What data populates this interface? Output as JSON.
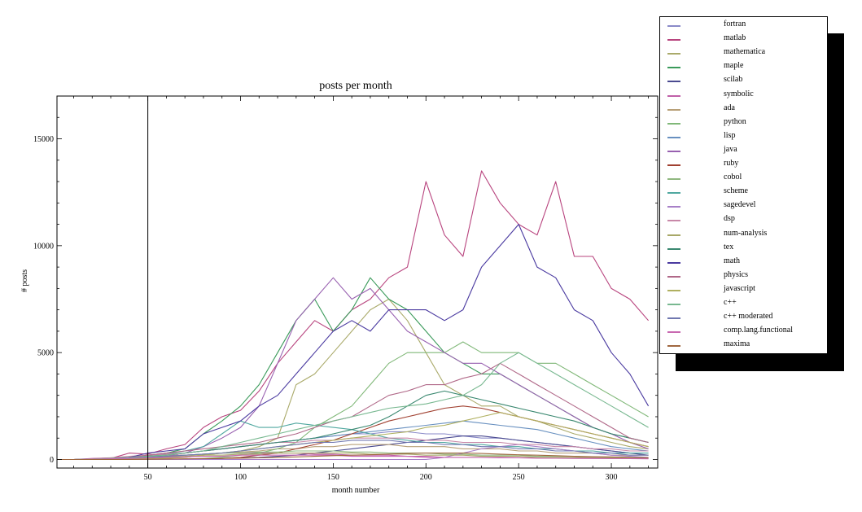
{
  "chart_data": {
    "type": "line",
    "title": "posts per month",
    "xlabel": "month number",
    "ylabel": "# posts",
    "xlim": [
      1,
      325
    ],
    "ylim": [
      -400,
      17000
    ],
    "xticks": [
      50,
      100,
      150,
      200,
      250,
      300
    ],
    "yticks": [
      0,
      5000,
      10000,
      15000
    ],
    "vertical_marker_x": 50,
    "grid": false,
    "legend_placement": "right-outside-top",
    "x": [
      1,
      10,
      20,
      30,
      40,
      50,
      60,
      70,
      80,
      90,
      100,
      110,
      120,
      130,
      140,
      150,
      160,
      170,
      180,
      190,
      200,
      210,
      220,
      230,
      240,
      250,
      260,
      270,
      280,
      290,
      300,
      310,
      320
    ],
    "series": [
      {
        "name": "fortran",
        "color": "#8a8ac8",
        "values": [
          0,
          0,
          10,
          30,
          80,
          150,
          200,
          300,
          400,
          500,
          600,
          700,
          800,
          900,
          1000,
          1100,
          1200,
          1200,
          1300,
          1300,
          1200,
          1200,
          1100,
          1000,
          1000,
          900,
          800,
          700,
          600,
          500,
          400,
          300,
          300
        ]
      },
      {
        "name": "matlab",
        "color": "#b8447e",
        "values": [
          0,
          0,
          20,
          50,
          300,
          250,
          500,
          700,
          1500,
          2000,
          2300,
          3200,
          4500,
          5500,
          6500,
          6000,
          7000,
          7500,
          8500,
          9000,
          13000,
          10500,
          9500,
          13500,
          12000,
          11000,
          10500,
          13000,
          9500,
          9500,
          8000,
          7500,
          6500
        ]
      },
      {
        "name": "mathematica",
        "color": "#aaaa6a",
        "values": [
          0,
          0,
          0,
          0,
          20,
          50,
          80,
          100,
          200,
          300,
          400,
          600,
          1000,
          3500,
          4000,
          5000,
          6000,
          7000,
          7500,
          6500,
          5000,
          3500,
          3000,
          2500,
          2500,
          2000,
          1800,
          1500,
          1200,
          1000,
          800,
          600,
          500
        ]
      },
      {
        "name": "maple",
        "color": "#3a9a5a",
        "values": [
          0,
          0,
          0,
          20,
          100,
          200,
          300,
          500,
          1200,
          1800,
          2500,
          3500,
          5000,
          6500,
          7500,
          6000,
          7000,
          8500,
          7500,
          7000,
          6000,
          5000,
          4500,
          4000,
          4000,
          3500,
          3000,
          2500,
          2000,
          1500,
          1200,
          1000,
          800
        ]
      },
      {
        "name": "scilab",
        "color": "#4a4a90",
        "values": [
          0,
          0,
          0,
          0,
          0,
          0,
          0,
          10,
          20,
          50,
          80,
          100,
          150,
          200,
          300,
          400,
          500,
          600,
          700,
          800,
          900,
          1000,
          1100,
          1100,
          1000,
          900,
          800,
          700,
          600,
          500,
          400,
          300,
          200
        ]
      },
      {
        "name": "symbolic",
        "color": "#c060a8",
        "values": [
          0,
          0,
          50,
          80,
          100,
          150,
          200,
          200,
          250,
          300,
          300,
          300,
          300,
          300,
          250,
          250,
          200,
          200,
          200,
          150,
          150,
          100,
          100,
          100,
          100,
          80,
          80,
          60,
          60,
          50,
          50,
          40,
          40
        ]
      },
      {
        "name": "ada",
        "color": "#b8a078",
        "values": [
          0,
          0,
          30,
          50,
          80,
          120,
          150,
          200,
          250,
          300,
          350,
          400,
          500,
          500,
          600,
          600,
          700,
          700,
          700,
          600,
          600,
          600,
          500,
          500,
          500,
          400,
          400,
          300,
          300,
          300,
          200,
          200,
          200
        ]
      },
      {
        "name": "python",
        "color": "#80b878",
        "values": [
          0,
          0,
          0,
          0,
          0,
          0,
          10,
          20,
          50,
          100,
          200,
          300,
          500,
          800,
          1500,
          2000,
          2500,
          3500,
          4500,
          5000,
          5000,
          5000,
          5500,
          5000,
          5000,
          5000,
          4500,
          4500,
          4000,
          3500,
          3000,
          2500,
          2000
        ]
      },
      {
        "name": "lisp",
        "color": "#6890c0",
        "values": [
          0,
          0,
          20,
          50,
          100,
          150,
          200,
          300,
          400,
          500,
          600,
          700,
          800,
          900,
          1000,
          1100,
          1200,
          1300,
          1400,
          1500,
          1600,
          1700,
          1800,
          1700,
          1600,
          1500,
          1400,
          1200,
          1000,
          800,
          600,
          500,
          400
        ]
      },
      {
        "name": "java",
        "color": "#9860b0",
        "values": [
          0,
          0,
          0,
          0,
          50,
          100,
          200,
          300,
          600,
          1000,
          1500,
          2500,
          4500,
          6500,
          7500,
          8500,
          7500,
          8000,
          7000,
          6000,
          5500,
          5000,
          4500,
          4500,
          4000,
          3500,
          3000,
          2500,
          2000,
          1500,
          1200,
          800,
          500
        ]
      },
      {
        "name": "ruby",
        "color": "#a04030",
        "values": [
          0,
          0,
          0,
          0,
          0,
          0,
          0,
          10,
          20,
          50,
          100,
          200,
          300,
          500,
          700,
          900,
          1200,
          1500,
          1800,
          2000,
          2200,
          2400,
          2500,
          2400,
          2200,
          2000,
          1800,
          1600,
          1400,
          1200,
          1000,
          800,
          600
        ]
      },
      {
        "name": "cobol",
        "color": "#90b880",
        "values": [
          0,
          0,
          20,
          40,
          80,
          100,
          150,
          200,
          250,
          300,
          300,
          350,
          350,
          400,
          400,
          400,
          350,
          350,
          300,
          300,
          300,
          250,
          250,
          200,
          200,
          200,
          150,
          150,
          150,
          100,
          100,
          100,
          80
        ]
      },
      {
        "name": "scheme",
        "color": "#50a8a0",
        "values": [
          0,
          0,
          10,
          30,
          80,
          150,
          250,
          400,
          600,
          1200,
          1800,
          1500,
          1500,
          1700,
          1600,
          1500,
          1400,
          1200,
          1000,
          900,
          800,
          800,
          700,
          700,
          600,
          600,
          500,
          500,
          400,
          400,
          300,
          300,
          300
        ]
      },
      {
        "name": "sagedevel",
        "color": "#a880c8",
        "values": [
          0,
          0,
          0,
          0,
          0,
          0,
          0,
          0,
          0,
          0,
          0,
          0,
          0,
          0,
          0,
          0,
          0,
          0,
          0,
          0,
          0,
          100,
          300,
          500,
          600,
          700,
          600,
          500,
          400,
          300,
          200,
          150,
          100
        ]
      },
      {
        "name": "dsp",
        "color": "#c888a8",
        "values": [
          0,
          0,
          30,
          80,
          150,
          200,
          250,
          300,
          400,
          500,
          600,
          700,
          800,
          800,
          900,
          900,
          1000,
          1000,
          1000,
          1000,
          900,
          900,
          800,
          800,
          800,
          700,
          700,
          600,
          600,
          500,
          500,
          400,
          400
        ]
      },
      {
        "name": "num-analysis",
        "color": "#a8a868",
        "values": [
          0,
          0,
          20,
          50,
          80,
          100,
          120,
          150,
          200,
          200,
          250,
          250,
          300,
          300,
          300,
          300,
          300,
          250,
          250,
          250,
          200,
          200,
          200,
          150,
          150,
          150,
          100,
          100,
          100,
          100,
          80,
          80,
          60
        ]
      },
      {
        "name": "tex",
        "color": "#3a8870",
        "values": [
          0,
          0,
          20,
          50,
          100,
          150,
          200,
          300,
          400,
          500,
          600,
          700,
          800,
          900,
          1000,
          1200,
          1400,
          1600,
          2000,
          2500,
          3000,
          3200,
          3000,
          2800,
          2600,
          2400,
          2200,
          2000,
          1800,
          1500,
          1200,
          1000,
          800
        ]
      },
      {
        "name": "math",
        "color": "#4a3aa0",
        "values": [
          0,
          0,
          10,
          30,
          100,
          300,
          400,
          500,
          1200,
          1500,
          1800,
          2500,
          3000,
          4000,
          5000,
          6000,
          6500,
          6000,
          7000,
          7000,
          7000,
          6500,
          7000,
          9000,
          10000,
          11000,
          9000,
          8500,
          7000,
          6500,
          5000,
          4000,
          2500
        ]
      },
      {
        "name": "physics",
        "color": "#b06888",
        "values": [
          0,
          0,
          20,
          50,
          100,
          200,
          300,
          400,
          500,
          600,
          700,
          800,
          1000,
          1200,
          1500,
          1800,
          2000,
          2500,
          3000,
          3200,
          3500,
          3500,
          3800,
          4000,
          4500,
          4000,
          3500,
          3000,
          2500,
          2000,
          1500,
          1000,
          800
        ]
      },
      {
        "name": "javascript",
        "color": "#b0b060",
        "values": [
          0,
          0,
          0,
          0,
          10,
          20,
          50,
          100,
          200,
          300,
          400,
          500,
          600,
          700,
          800,
          900,
          1000,
          1100,
          1200,
          1300,
          1500,
          1600,
          1800,
          2000,
          2200,
          2000,
          1800,
          1600,
          1400,
          1200,
          1000,
          800,
          600
        ]
      },
      {
        "name": "c++",
        "color": "#78b890",
        "values": [
          0,
          0,
          20,
          50,
          100,
          150,
          200,
          300,
          400,
          600,
          800,
          1000,
          1200,
          1400,
          1600,
          1800,
          2000,
          2200,
          2400,
          2500,
          2600,
          2800,
          3000,
          3500,
          4500,
          5000,
          4500,
          4000,
          3500,
          3000,
          2500,
          2000,
          1500
        ]
      },
      {
        "name": "c++ moderated",
        "color": "#7078b0",
        "values": [
          0,
          0,
          10,
          30,
          80,
          100,
          150,
          200,
          250,
          300,
          400,
          500,
          600,
          700,
          800,
          800,
          900,
          900,
          900,
          800,
          800,
          700,
          700,
          600,
          600,
          500,
          500,
          400,
          400,
          300,
          300,
          200,
          200
        ]
      },
      {
        "name": "comp.lang.functional",
        "color": "#c868b0",
        "values": [
          0,
          0,
          10,
          30,
          50,
          80,
          100,
          120,
          150,
          150,
          200,
          200,
          200,
          200,
          200,
          200,
          150,
          150,
          150,
          150,
          100,
          100,
          100,
          100,
          80,
          80,
          60,
          60,
          50,
          50,
          40,
          40,
          30
        ]
      },
      {
        "name": "maxima",
        "color": "#a06840",
        "values": [
          0,
          0,
          0,
          0,
          0,
          10,
          20,
          30,
          40,
          50,
          60,
          80,
          100,
          120,
          150,
          180,
          200,
          220,
          250,
          280,
          300,
          300,
          300,
          280,
          250,
          220,
          200,
          180,
          150,
          130,
          120,
          100,
          80
        ]
      }
    ]
  }
}
